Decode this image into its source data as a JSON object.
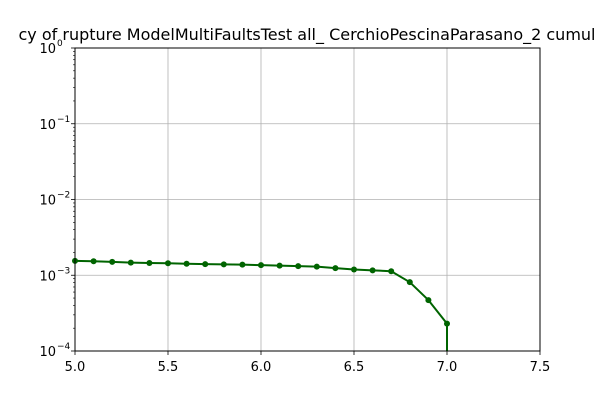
{
  "chart_data": {
    "type": "line",
    "title": "cy of rupture ModelMultiFaultsTest all_ CerchioPescinaParasano_2 cumul",
    "xlabel": "",
    "ylabel": "",
    "xlim": [
      5.0,
      7.5
    ],
    "ylim": [
      0.0001,
      1
    ],
    "yscale": "log",
    "grid": true,
    "x_ticks": [
      "5.0",
      "5.5",
      "6.0",
      "6.5",
      "7.0",
      "7.5"
    ],
    "y_ticks": [
      {
        "base": "10",
        "exp": "−4"
      },
      {
        "base": "10",
        "exp": "−3"
      },
      {
        "base": "10",
        "exp": "−2"
      },
      {
        "base": "10",
        "exp": "−1"
      },
      {
        "base": "10",
        "exp": "0"
      }
    ],
    "series": [
      {
        "color": "#006400",
        "marker": "circle",
        "x": [
          5.0,
          5.1,
          5.2,
          5.3,
          5.4,
          5.5,
          5.6,
          5.7,
          5.8,
          5.9,
          6.0,
          6.1,
          6.2,
          6.3,
          6.4,
          6.5,
          6.6,
          6.7,
          6.8,
          6.9,
          7.0,
          7.0
        ],
        "y": [
          0.00155,
          0.00153,
          0.0015,
          0.00147,
          0.00145,
          0.00144,
          0.00142,
          0.0014,
          0.00139,
          0.00138,
          0.00136,
          0.00134,
          0.00132,
          0.0013,
          0.00124,
          0.00119,
          0.00116,
          0.00113,
          0.00081,
          0.00047,
          0.00023,
          0.0001
        ]
      }
    ]
  }
}
